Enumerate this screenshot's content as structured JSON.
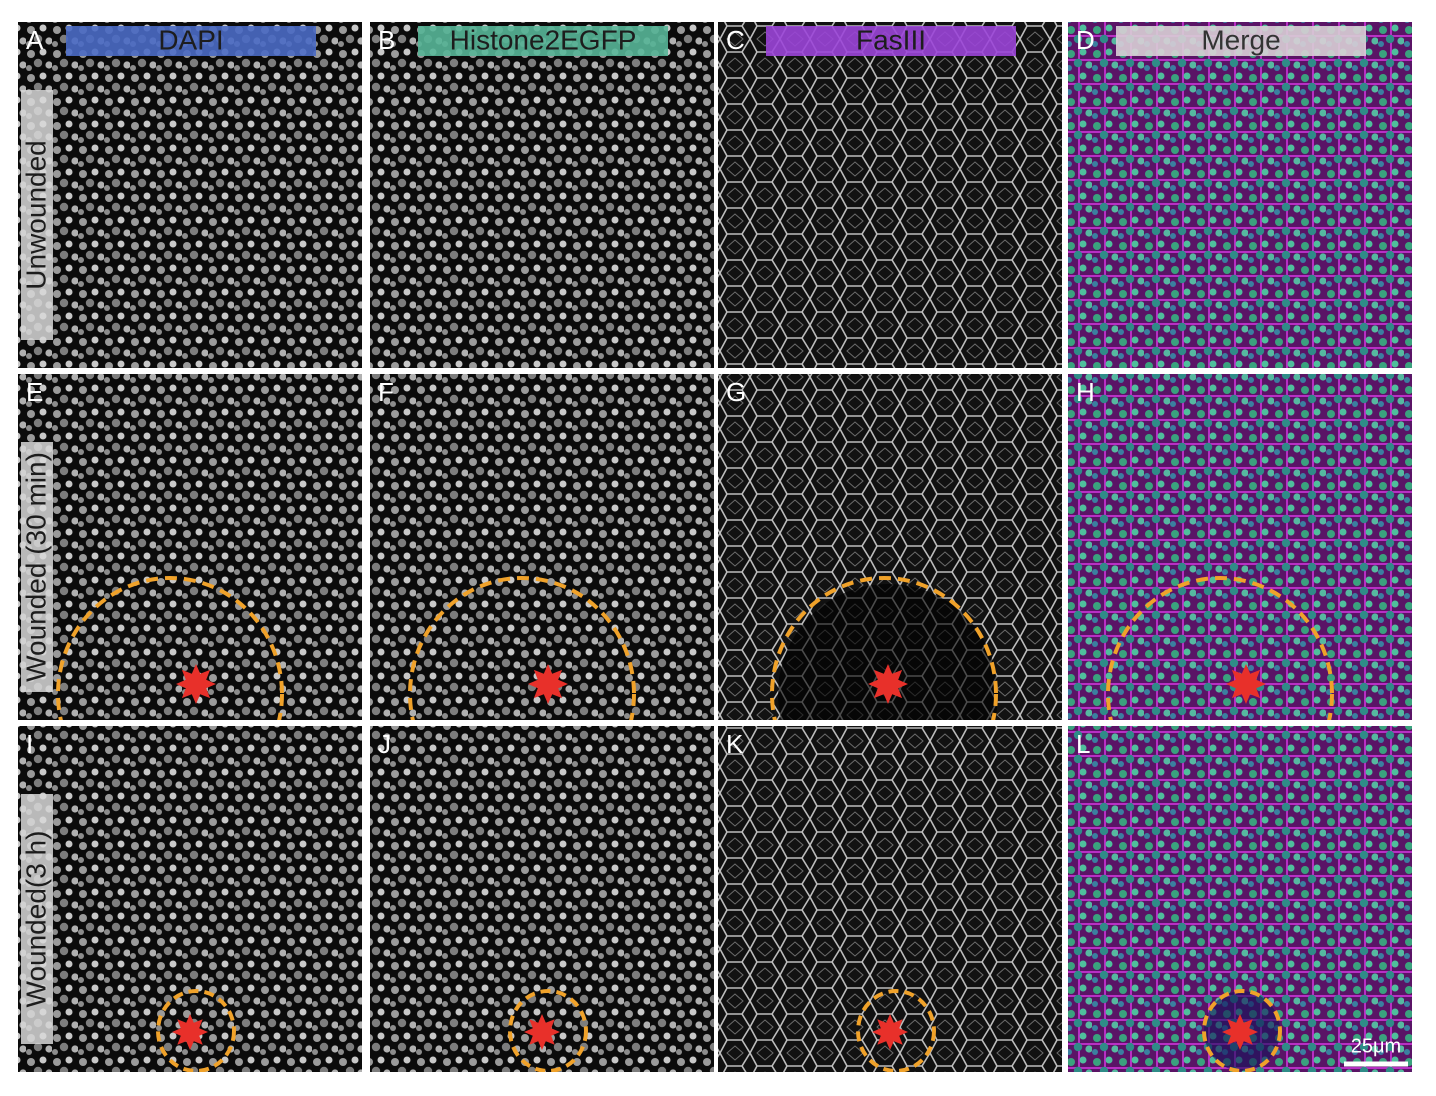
{
  "columns": [
    "DAPI",
    "Histone2EGFP",
    "FasIII",
    "Merge"
  ],
  "rows": [
    "Unwounded",
    "Wounded (30 min)",
    "Wounded(3 h)"
  ],
  "panels": [
    [
      "A",
      "B",
      "C",
      "D"
    ],
    [
      "E",
      "F",
      "G",
      "H"
    ],
    [
      "I",
      "J",
      "K",
      "L"
    ]
  ],
  "scale_bar": "25μm"
}
